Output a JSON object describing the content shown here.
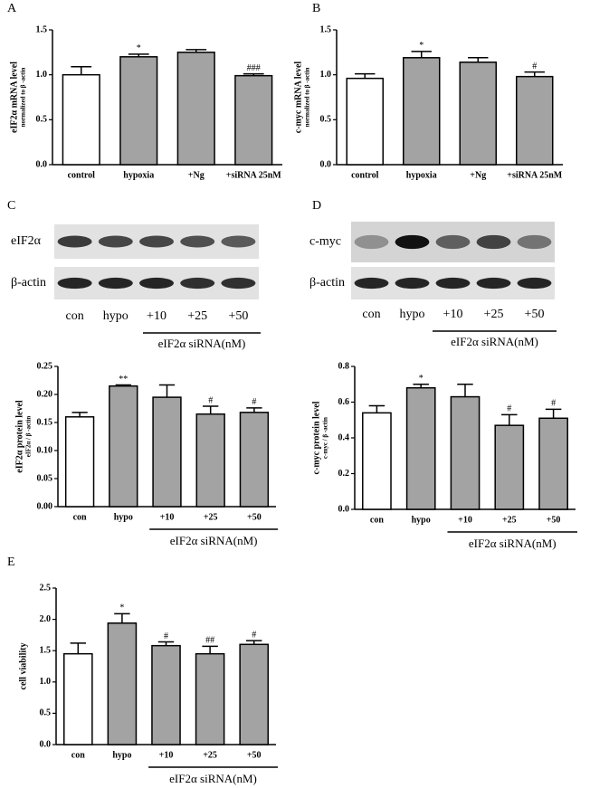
{
  "chart_data": [
    {
      "type": "bar",
      "panel": "A",
      "ylabel": "eIF2α  mRNA level",
      "ylabel_sub": "normalized to β -actin",
      "categories": [
        "control",
        "hypoxia",
        "+Ng",
        "+siRNA 25nM"
      ],
      "values": [
        1.0,
        1.2,
        1.25,
        0.99
      ],
      "errors": [
        0.09,
        0.03,
        0.03,
        0.02
      ],
      "annotations": [
        null,
        "*",
        null,
        "###"
      ],
      "colors": [
        "#ffffff",
        "#a3a3a3",
        "#a3a3a3",
        "#a3a3a3"
      ],
      "ylim": [
        0,
        1.5
      ],
      "yticks": [
        {
          "value": 0,
          "label": "0.0"
        },
        {
          "value": 0.5,
          "label": "0.5"
        },
        {
          "value": 1,
          "label": "1.0"
        },
        {
          "value": 1.5,
          "label": "1.5"
        }
      ]
    },
    {
      "type": "bar",
      "panel": "B",
      "ylabel": "c-myc mRNA level",
      "ylabel_sub": "normalized to β -actin",
      "categories": [
        "control",
        "hypoxia",
        "+Ng",
        "+siRNA 25nM"
      ],
      "values": [
        0.96,
        1.19,
        1.14,
        0.98
      ],
      "errors": [
        0.05,
        0.07,
        0.05,
        0.05
      ],
      "annotations": [
        null,
        "*",
        null,
        "#"
      ],
      "colors": [
        "#ffffff",
        "#a3a3a3",
        "#a3a3a3",
        "#a3a3a3"
      ],
      "ylim": [
        0,
        1.5
      ],
      "yticks": [
        {
          "value": 0,
          "label": "0.0"
        },
        {
          "value": 0.5,
          "label": "0.5"
        },
        {
          "value": 1,
          "label": "1.0"
        },
        {
          "value": 1.5,
          "label": "1.5"
        }
      ]
    },
    {
      "type": "bar",
      "ylabel": "eIF2α  protein level",
      "ylabel_sub": "eIF2α / β -actin",
      "categories": [
        "con",
        "hypo",
        "+10",
        "+25",
        "+50"
      ],
      "values": [
        0.16,
        0.215,
        0.195,
        0.165,
        0.168
      ],
      "errors": [
        0.008,
        0.002,
        0.022,
        0.014,
        0.008
      ],
      "annotations": [
        null,
        "**",
        null,
        "#",
        "#"
      ],
      "colors": [
        "#ffffff",
        "#a3a3a3",
        "#a3a3a3",
        "#a3a3a3",
        "#a3a3a3"
      ],
      "group_label": "eIF2α siRNA(nM)",
      "ylim": [
        0,
        0.25
      ],
      "yticks": [
        {
          "value": 0,
          "label": "0.00"
        },
        {
          "value": 0.05,
          "label": "0.05"
        },
        {
          "value": 0.1,
          "label": "0.10"
        },
        {
          "value": 0.15,
          "label": "0.15"
        },
        {
          "value": 0.2,
          "label": "0.20"
        },
        {
          "value": 0.25,
          "label": "0.25"
        }
      ]
    },
    {
      "type": "bar",
      "ylabel": "c-myc protein level",
      "ylabel_sub": "c-myc / β -actin",
      "categories": [
        "con",
        "hypo",
        "+10",
        "+25",
        "+50"
      ],
      "values": [
        0.54,
        0.68,
        0.63,
        0.47,
        0.51
      ],
      "errors": [
        0.04,
        0.02,
        0.07,
        0.06,
        0.05
      ],
      "annotations": [
        null,
        "*",
        null,
        "#",
        "#"
      ],
      "colors": [
        "#ffffff",
        "#a3a3a3",
        "#a3a3a3",
        "#a3a3a3",
        "#a3a3a3"
      ],
      "group_label": "eIF2α siRNA(nM)",
      "ylim": [
        0,
        0.8
      ],
      "yticks": [
        {
          "value": 0,
          "label": "0.0"
        },
        {
          "value": 0.2,
          "label": "0.2"
        },
        {
          "value": 0.4,
          "label": "0.4"
        },
        {
          "value": 0.6,
          "label": "0.6"
        },
        {
          "value": 0.8,
          "label": "0.8"
        }
      ]
    },
    {
      "type": "bar",
      "panel": "E",
      "ylabel": "cell viability",
      "categories": [
        "con",
        "hypo",
        "+10",
        "+25",
        "+50"
      ],
      "values": [
        1.45,
        1.94,
        1.58,
        1.45,
        1.6
      ],
      "errors": [
        0.17,
        0.15,
        0.06,
        0.12,
        0.06
      ],
      "annotations": [
        null,
        "*",
        "#",
        "##",
        "#"
      ],
      "colors": [
        "#ffffff",
        "#a3a3a3",
        "#a3a3a3",
        "#a3a3a3",
        "#a3a3a3"
      ],
      "group_label": "eIF2α siRNA(nM)",
      "ylim": [
        0,
        2.5
      ],
      "yticks": [
        {
          "value": 0,
          "label": "0.0"
        },
        {
          "value": 0.5,
          "label": "0.5"
        },
        {
          "value": 1,
          "label": "1.0"
        },
        {
          "value": 1.5,
          "label": "1.5"
        },
        {
          "value": 2,
          "label": "2.0"
        },
        {
          "value": 2.5,
          "label": "2.5"
        }
      ]
    }
  ],
  "blots": [
    {
      "panel": "C",
      "rows": [
        "eIF2α",
        "β-actin"
      ],
      "lanes": [
        "con",
        "hypo",
        "+10",
        "+25",
        "+50"
      ],
      "group_label": "eIF2α siRNA(nM)"
    },
    {
      "panel": "D",
      "rows": [
        "c-myc",
        "β-actin"
      ],
      "lanes": [
        "con",
        "hypo",
        "+10",
        "+25",
        "+50"
      ],
      "group_label": "eIF2α siRNA(nM)"
    }
  ]
}
